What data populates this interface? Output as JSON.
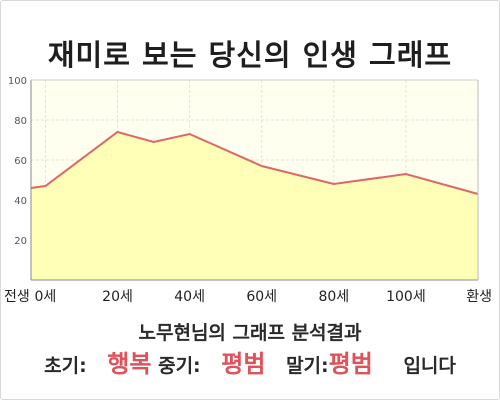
{
  "title": "재미로 보는 당신의 인생 그래프",
  "chart_data": {
    "type": "area",
    "x": [
      -4,
      0,
      20,
      30,
      40,
      60,
      80,
      100,
      120
    ],
    "values": [
      46,
      47,
      74,
      69,
      73,
      57,
      48,
      53,
      43
    ],
    "x_ticks": [
      {
        "x": -4,
        "label": "전생"
      },
      {
        "x": 0,
        "label": "0세"
      },
      {
        "x": 20,
        "label": "20세"
      },
      {
        "x": 40,
        "label": "40세"
      },
      {
        "x": 60,
        "label": "60세"
      },
      {
        "x": 80,
        "label": "80세"
      },
      {
        "x": 100,
        "label": "100세"
      },
      {
        "x": 120,
        "label": "환생"
      }
    ],
    "y_ticks": [
      "20",
      "40",
      "60",
      "80",
      "100"
    ],
    "ylim": [
      0,
      100
    ],
    "grid": true,
    "colors": {
      "line": "#e06666",
      "fill": "#ffffb8",
      "plot_bg": "#fffff0",
      "grid": "#e4e4cf"
    }
  },
  "result": {
    "heading": "노무현님의 그래프 분석결과",
    "early_label": "초기:",
    "early_value": "행복",
    "mid_label": "중기:",
    "mid_value": "평범",
    "late_label": "말기:",
    "late_value": "평범",
    "ending": "입니다"
  }
}
